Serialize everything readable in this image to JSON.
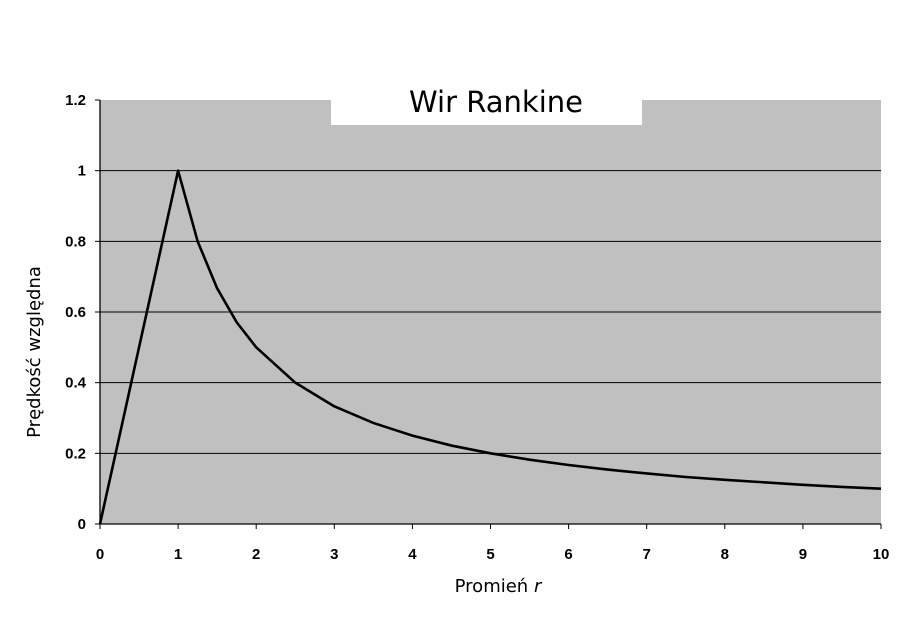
{
  "chart_data": {
    "type": "line",
    "title": "Wir Rankine",
    "xlabel_main": "Promień ",
    "xlabel_var": "r",
    "ylabel": "Prędkość względna",
    "xlim": [
      0,
      10
    ],
    "ylim": [
      0,
      1.2
    ],
    "x_ticks": [
      "0",
      "1",
      "2",
      "3",
      "4",
      "5",
      "6",
      "7",
      "8",
      "9",
      "10"
    ],
    "y_ticks": [
      "0",
      "0.2",
      "0.4",
      "0.6",
      "0.8",
      "1",
      "1.2"
    ],
    "grid": "horizontal",
    "legend": "none",
    "series": [
      {
        "x": [
          0,
          0.25,
          0.5,
          0.75,
          1,
          1.25,
          1.5,
          1.75,
          2,
          2.5,
          3,
          3.5,
          4,
          4.5,
          5,
          5.5,
          6,
          6.5,
          7,
          7.5,
          8,
          8.5,
          9,
          9.5,
          10
        ],
        "y": [
          0,
          0.25,
          0.5,
          0.75,
          1,
          0.8,
          0.667,
          0.571,
          0.5,
          0.4,
          0.333,
          0.286,
          0.25,
          0.222,
          0.2,
          0.182,
          0.167,
          0.154,
          0.143,
          0.133,
          0.125,
          0.118,
          0.111,
          0.105,
          0.1
        ]
      }
    ],
    "colors": {
      "plot_background": "#c0c0c0",
      "line": "#000000",
      "grid": "#000000"
    }
  }
}
